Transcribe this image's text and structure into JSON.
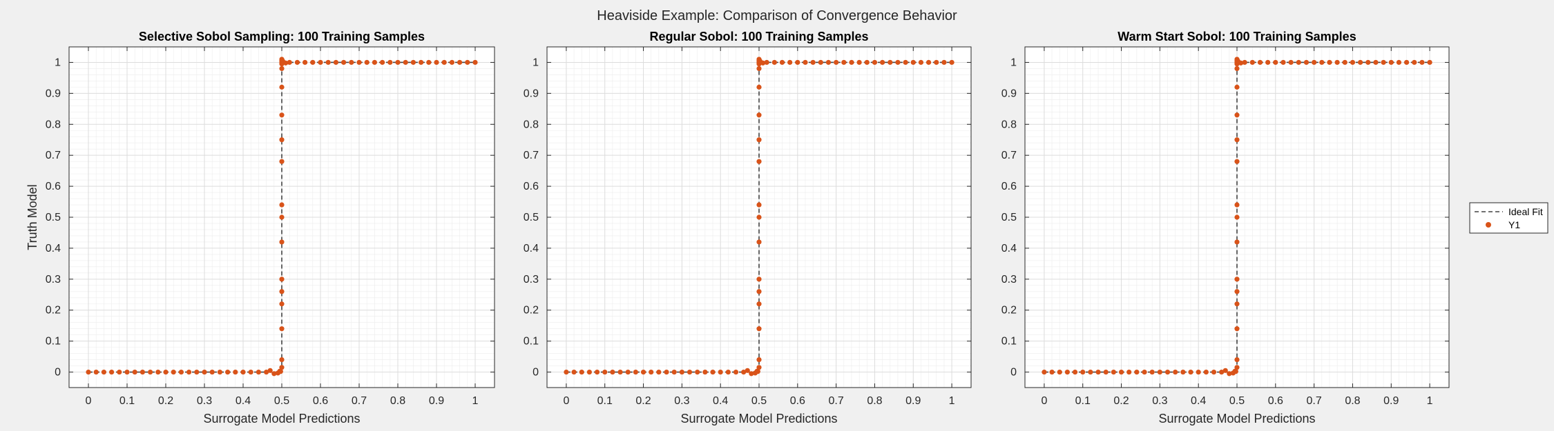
{
  "figure": {
    "title": "Heaviside Example: Comparison of Convergence Behavior"
  },
  "legend": {
    "placement": "right",
    "entries": [
      {
        "label": "Ideal Fit",
        "style": "dashed-line",
        "color": "#404040"
      },
      {
        "label": "Y1",
        "style": "marker",
        "color": "#d95319"
      }
    ]
  },
  "colors": {
    "series": "#d95319",
    "ideal": "#404040",
    "grid": "#dcdcdc",
    "axes_bg": "#ffffff",
    "figure_bg": "#f0f0f0"
  },
  "chart_data": [
    {
      "type": "scatter",
      "title": "Selective Sobol Sampling: 100 Training Samples",
      "xlabel": "Surrogate Model Predictions",
      "ylabel": "Truth Model",
      "xlim": [
        -0.05,
        1.05
      ],
      "ylim": [
        -0.05,
        1.05
      ],
      "xticks": [
        "0",
        "0.1",
        "0.2",
        "0.3",
        "0.4",
        "0.5",
        "0.6",
        "0.7",
        "0.8",
        "0.9",
        "1"
      ],
      "yticks": [
        "0",
        "0.1",
        "0.2",
        "0.3",
        "0.4",
        "0.5",
        "0.6",
        "0.7",
        "0.8",
        "0.9",
        "1"
      ],
      "grid": true,
      "series": [
        {
          "name": "Ideal Fit",
          "kind": "step",
          "x": [
            0,
            0.5,
            0.5,
            1
          ],
          "y": [
            0,
            0,
            1,
            1
          ]
        },
        {
          "name": "Y1",
          "kind": "points",
          "x": [
            0.0,
            0.02,
            0.04,
            0.06,
            0.08,
            0.1,
            0.12,
            0.14,
            0.16,
            0.18,
            0.2,
            0.22,
            0.24,
            0.26,
            0.28,
            0.3,
            0.32,
            0.34,
            0.36,
            0.38,
            0.4,
            0.42,
            0.44,
            0.46,
            0.47,
            0.48,
            0.49,
            0.495,
            0.497,
            0.5,
            0.5,
            0.5,
            0.5,
            0.5,
            0.5,
            0.5,
            0.5,
            0.5,
            0.5,
            0.5,
            0.5,
            0.5,
            0.5,
            0.5,
            0.5,
            0.5,
            0.5,
            0.5,
            0.502,
            0.505,
            0.51,
            0.52,
            0.54,
            0.56,
            0.58,
            0.6,
            0.62,
            0.64,
            0.66,
            0.68,
            0.7,
            0.72,
            0.74,
            0.76,
            0.78,
            0.8,
            0.82,
            0.84,
            0.86,
            0.88,
            0.9,
            0.92,
            0.94,
            0.96,
            0.98,
            1.0
          ],
          "y": [
            0,
            0,
            0,
            0,
            0,
            0,
            0,
            0,
            0,
            0,
            0,
            0,
            0,
            0,
            0,
            0,
            0,
            0,
            0,
            0,
            0,
            0,
            0,
            0,
            0.005,
            -0.005,
            -0.003,
            0.003,
            0.002,
            0.015,
            0.04,
            0.14,
            0.22,
            0.26,
            0.3,
            0.42,
            0.5,
            0.54,
            0.68,
            0.75,
            0.83,
            0.92,
            0.98,
            1,
            0.995,
            1,
            1.005,
            1.01,
            1.005,
            1,
            0.998,
            1,
            1,
            1,
            1,
            1,
            1,
            1,
            1,
            1,
            1,
            1,
            1,
            1,
            1,
            1,
            1,
            1,
            1,
            1,
            1,
            1,
            1,
            1,
            1,
            1
          ]
        }
      ]
    },
    {
      "type": "scatter",
      "title": "Regular Sobol: 100 Training Samples",
      "xlabel": "Surrogate Model Predictions",
      "ylabel": "",
      "xlim": [
        -0.05,
        1.05
      ],
      "ylim": [
        -0.05,
        1.05
      ],
      "xticks": [
        "0",
        "0.1",
        "0.2",
        "0.3",
        "0.4",
        "0.5",
        "0.6",
        "0.7",
        "0.8",
        "0.9",
        "1"
      ],
      "yticks": [
        "0",
        "0.1",
        "0.2",
        "0.3",
        "0.4",
        "0.5",
        "0.6",
        "0.7",
        "0.8",
        "0.9",
        "1"
      ],
      "grid": true,
      "series": [
        {
          "name": "Ideal Fit",
          "kind": "step",
          "x": [
            0,
            0.5,
            0.5,
            1
          ],
          "y": [
            0,
            0,
            1,
            1
          ]
        },
        {
          "name": "Y1",
          "kind": "points",
          "x": [
            0.0,
            0.02,
            0.04,
            0.06,
            0.08,
            0.1,
            0.12,
            0.14,
            0.16,
            0.18,
            0.2,
            0.22,
            0.24,
            0.26,
            0.28,
            0.3,
            0.32,
            0.34,
            0.36,
            0.38,
            0.4,
            0.42,
            0.44,
            0.46,
            0.47,
            0.48,
            0.49,
            0.495,
            0.497,
            0.5,
            0.5,
            0.5,
            0.5,
            0.5,
            0.5,
            0.5,
            0.5,
            0.5,
            0.5,
            0.5,
            0.5,
            0.5,
            0.5,
            0.5,
            0.5,
            0.5,
            0.5,
            0.5,
            0.502,
            0.505,
            0.51,
            0.52,
            0.54,
            0.56,
            0.58,
            0.6,
            0.62,
            0.64,
            0.66,
            0.68,
            0.7,
            0.72,
            0.74,
            0.76,
            0.78,
            0.8,
            0.82,
            0.84,
            0.86,
            0.88,
            0.9,
            0.92,
            0.94,
            0.96,
            0.98,
            1.0
          ],
          "y": [
            0,
            0,
            0,
            0,
            0,
            0,
            0,
            0,
            0,
            0,
            0,
            0,
            0,
            0,
            0,
            0,
            0,
            0,
            0,
            0,
            0,
            0,
            0,
            0,
            0.005,
            -0.005,
            -0.003,
            0.003,
            0.002,
            0.015,
            0.04,
            0.14,
            0.22,
            0.26,
            0.3,
            0.42,
            0.5,
            0.54,
            0.68,
            0.75,
            0.83,
            0.92,
            0.98,
            1,
            0.995,
            1,
            1.005,
            1.01,
            1.005,
            1,
            0.998,
            1,
            1,
            1,
            1,
            1,
            1,
            1,
            1,
            1,
            1,
            1,
            1,
            1,
            1,
            1,
            1,
            1,
            1,
            1,
            1,
            1,
            1,
            1,
            1,
            1
          ]
        }
      ]
    },
    {
      "type": "scatter",
      "title": "Warm Start Sobol: 100 Training Samples",
      "xlabel": "Surrogate Model Predictions",
      "ylabel": "",
      "xlim": [
        -0.05,
        1.05
      ],
      "ylim": [
        -0.05,
        1.05
      ],
      "xticks": [
        "0",
        "0.1",
        "0.2",
        "0.3",
        "0.4",
        "0.5",
        "0.6",
        "0.7",
        "0.8",
        "0.9",
        "1"
      ],
      "yticks": [
        "0",
        "0.1",
        "0.2",
        "0.3",
        "0.4",
        "0.5",
        "0.6",
        "0.7",
        "0.8",
        "0.9",
        "1"
      ],
      "grid": true,
      "series": [
        {
          "name": "Ideal Fit",
          "kind": "step",
          "x": [
            0,
            0.5,
            0.5,
            1
          ],
          "y": [
            0,
            0,
            1,
            1
          ]
        },
        {
          "name": "Y1",
          "kind": "points",
          "x": [
            0.0,
            0.02,
            0.04,
            0.06,
            0.08,
            0.1,
            0.12,
            0.14,
            0.16,
            0.18,
            0.2,
            0.22,
            0.24,
            0.26,
            0.28,
            0.3,
            0.32,
            0.34,
            0.36,
            0.38,
            0.4,
            0.42,
            0.44,
            0.46,
            0.47,
            0.48,
            0.49,
            0.495,
            0.497,
            0.5,
            0.5,
            0.5,
            0.5,
            0.5,
            0.5,
            0.5,
            0.5,
            0.5,
            0.5,
            0.5,
            0.5,
            0.5,
            0.5,
            0.5,
            0.5,
            0.5,
            0.5,
            0.5,
            0.502,
            0.505,
            0.51,
            0.52,
            0.54,
            0.56,
            0.58,
            0.6,
            0.62,
            0.64,
            0.66,
            0.68,
            0.7,
            0.72,
            0.74,
            0.76,
            0.78,
            0.8,
            0.82,
            0.84,
            0.86,
            0.88,
            0.9,
            0.92,
            0.94,
            0.96,
            0.98,
            1.0
          ],
          "y": [
            0,
            0,
            0,
            0,
            0,
            0,
            0,
            0,
            0,
            0,
            0,
            0,
            0,
            0,
            0,
            0,
            0,
            0,
            0,
            0,
            0,
            0,
            0,
            0,
            0.005,
            -0.005,
            -0.003,
            0.003,
            0.002,
            0.015,
            0.04,
            0.14,
            0.22,
            0.26,
            0.3,
            0.42,
            0.5,
            0.54,
            0.68,
            0.75,
            0.83,
            0.92,
            0.98,
            1,
            0.995,
            1,
            1.005,
            1.01,
            1.005,
            1,
            0.998,
            1,
            1,
            1,
            1,
            1,
            1,
            1,
            1,
            1,
            1,
            1,
            1,
            1,
            1,
            1,
            1,
            1,
            1,
            1,
            1,
            1,
            1,
            1,
            1,
            1
          ]
        }
      ]
    }
  ]
}
